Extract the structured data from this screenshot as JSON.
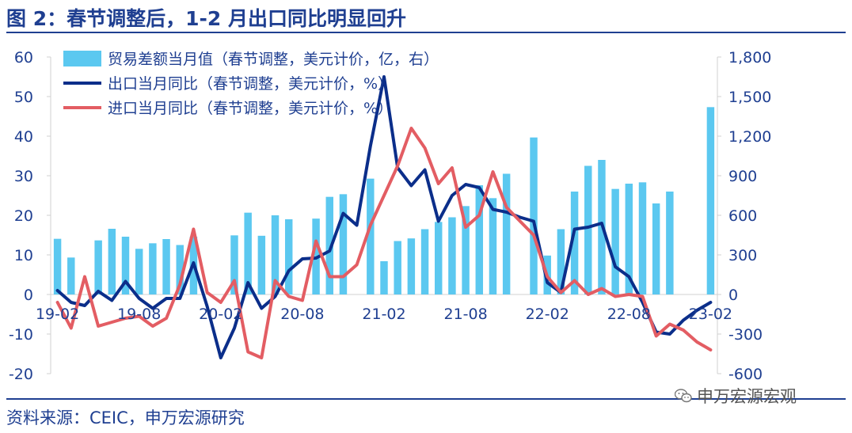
{
  "header": {
    "title": "图 2：春节调整后，1-2 月出口同比明显回升"
  },
  "footer": {
    "source": "资料来源：CEIC，申万宏源研究",
    "watermark": "申万宏源宏观"
  },
  "colors": {
    "bar": "#5bc8f0",
    "export": "#0b2e8a",
    "import": "#e35d63",
    "axis": "#d0d0d0",
    "title": "#1f3f91"
  },
  "chart_data": {
    "type": "bar+line",
    "x_ticks": [
      "19-02",
      "19-08",
      "20-02",
      "20-08",
      "21-02",
      "21-08",
      "22-02",
      "22-08",
      "23-02"
    ],
    "yleft": {
      "ticks": [
        "-20",
        "-10",
        "0",
        "10",
        "20",
        "30",
        "40",
        "50",
        "60"
      ],
      "lim": [
        -20,
        60
      ]
    },
    "yright": {
      "ticks": [
        "-600",
        "-300",
        "0",
        "300",
        "600",
        "900",
        "1,200",
        "1,500",
        "1,800"
      ],
      "lim": [
        -600,
        1800
      ]
    },
    "x": [
      "2019-02",
      "2019-03",
      "2019-04",
      "2019-05",
      "2019-06",
      "2019-07",
      "2019-08",
      "2019-09",
      "2019-10",
      "2019-11",
      "2019-12",
      "2020-01",
      "2020-02",
      "2020-03",
      "2020-04",
      "2020-05",
      "2020-06",
      "2020-07",
      "2020-08",
      "2020-09",
      "2020-10",
      "2020-11",
      "2020-12",
      "2021-01",
      "2021-02",
      "2021-03",
      "2021-04",
      "2021-05",
      "2021-06",
      "2021-07",
      "2021-08",
      "2021-09",
      "2021-10",
      "2021-11",
      "2021-12",
      "2022-01",
      "2022-02",
      "2022-03",
      "2022-04",
      "2022-05",
      "2022-06",
      "2022-07",
      "2022-08",
      "2022-09",
      "2022-10",
      "2022-11",
      "2022-12",
      "2023-01",
      "2023-02"
    ],
    "legend": [
      {
        "name": "贸易差额当月值（春节调整，美元计价，亿，右）",
        "kind": "bar"
      },
      {
        "name": "出口当月同比（春节调整，美元计价，%）",
        "kind": "line"
      },
      {
        "name": "进口当月同比（春节调整，美元计价，%）",
        "kind": "line"
      }
    ],
    "series": [
      {
        "name": "贸易差额当月值（春节调整，美元计价，亿，右）",
        "axis": "right",
        "kind": "bar",
        "values": [
          422,
          280,
          null,
          410,
          498,
          438,
          346,
          388,
          420,
          375,
          438,
          null,
          null,
          448,
          620,
          445,
          600,
          570,
          null,
          575,
          740,
          760,
          null,
          878,
          252,
          405,
          425,
          495,
          550,
          585,
          670,
          828,
          730,
          915,
          null,
          1190,
          295,
          495,
          780,
          975,
          1020,
          800,
          840,
          850,
          690,
          780,
          null,
          null,
          1420
        ]
      },
      {
        "name": "出口当月同比（春节调整，美元计价，%）",
        "axis": "left",
        "kind": "line",
        "values": [
          1,
          -2,
          -2.8,
          0.8,
          -1.5,
          3.3,
          -1,
          -3.5,
          -1,
          -1,
          8,
          -3,
          -16,
          -8.5,
          3,
          -3.5,
          -0.5,
          6,
          9,
          9.2,
          11,
          20.5,
          17.5,
          37.5,
          55,
          32,
          27.5,
          31.5,
          18.5,
          25,
          27.8,
          27,
          21.5,
          20.8,
          19.5,
          18.5,
          3,
          0.5,
          16.5,
          17,
          18,
          7,
          4.5,
          -2,
          -9.5,
          -10,
          -6.5,
          -4,
          -2
        ]
      },
      {
        "name": "进口当月同比（春节调整，美元计价，%）",
        "axis": "left",
        "kind": "line",
        "values": [
          -2,
          -8.5,
          4.5,
          -8,
          -7,
          -6,
          -5.5,
          -8,
          -6,
          2.5,
          16.5,
          0.5,
          -2,
          3.5,
          -14.5,
          -16,
          3.5,
          -0.5,
          -1.5,
          13.5,
          4.5,
          4.5,
          7.5,
          17.5,
          25,
          32.5,
          42,
          37,
          28,
          32,
          17,
          20,
          31,
          22,
          18.5,
          15,
          4.5,
          0.5,
          3.5,
          0,
          1.5,
          -0.5,
          0,
          -0.5,
          -10.5,
          -7.5,
          -9,
          -12,
          -14
        ]
      }
    ]
  }
}
